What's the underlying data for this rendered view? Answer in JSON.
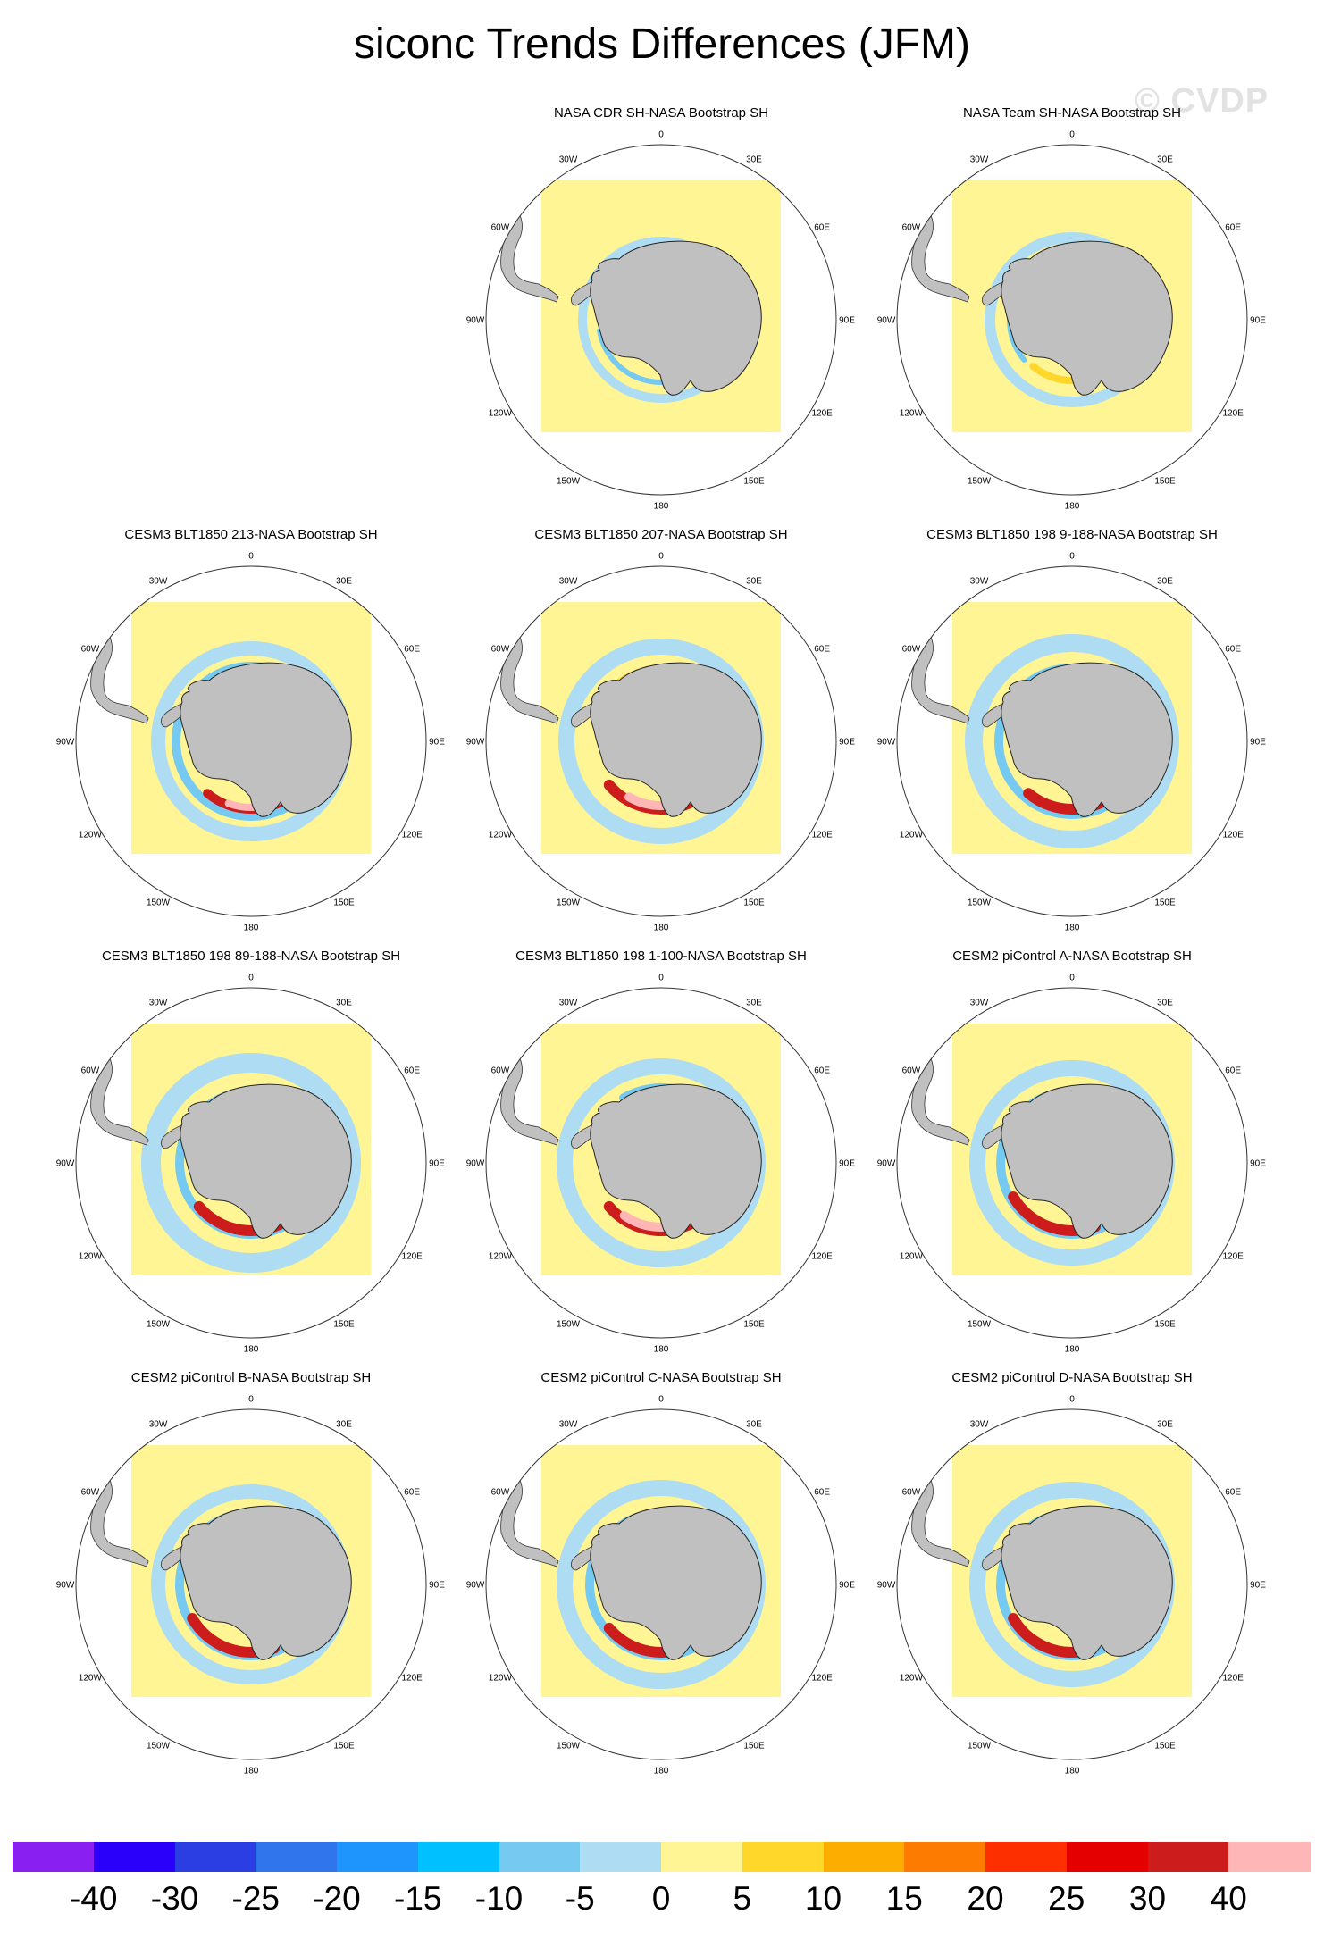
{
  "title": "siconc Trends Differences (JFM)",
  "watermark": "© CVDP",
  "lon_labels": {
    "0": "0",
    "30E": "30E",
    "60E": "60E",
    "90E": "90E",
    "120E": "120E",
    "150E": "150E",
    "180": "180",
    "150W": "150W",
    "120W": "120W",
    "90W": "90W",
    "60W": "60W",
    "30W": "30W"
  },
  "panels": [
    {
      "title": "NASA CDR SH-NASA Bootstrap SH",
      "pattern": "obs_cdr"
    },
    {
      "title": "NASA Team SH-NASA Bootstrap SH",
      "pattern": "obs_team"
    },
    {
      "title": "CESM3 BLT1850 213-NASA Bootstrap SH",
      "pattern": "model_a"
    },
    {
      "title": "CESM3 BLT1850 207-NASA Bootstrap SH",
      "pattern": "model_b"
    },
    {
      "title": "CESM3 BLT1850 198 9-188-NASA Bootstrap SH",
      "pattern": "model_c"
    },
    {
      "title": "CESM3 BLT1850 198 89-188-NASA Bootstrap SH",
      "pattern": "model_d"
    },
    {
      "title": "CESM3 BLT1850 198 1-100-NASA Bootstrap SH",
      "pattern": "model_e"
    },
    {
      "title": "CESM2 piControl A-NASA Bootstrap SH",
      "pattern": "model_f"
    },
    {
      "title": "CESM2 piControl B-NASA Bootstrap SH",
      "pattern": "model_g"
    },
    {
      "title": "CESM2 piControl C-NASA Bootstrap SH",
      "pattern": "model_h"
    },
    {
      "title": "CESM2 piControl D-NASA Bootstrap SH",
      "pattern": "model_i"
    }
  ],
  "colorbar": {
    "colors": [
      "#8a1ff2",
      "#2b00fb",
      "#2b3ee4",
      "#3075ec",
      "#1e95fd",
      "#00c0ff",
      "#76c9f1",
      "#aedcf2",
      "#fff594",
      "#fed72a",
      "#fdac00",
      "#fd7b00",
      "#fd2e00",
      "#e50000",
      "#cc1c1c",
      "#ffb6b6"
    ],
    "labels": [
      "-40",
      "-30",
      "-25",
      "-20",
      "-15",
      "-10",
      "-5",
      "0",
      "5",
      "10",
      "15",
      "20",
      "25",
      "30",
      "40"
    ]
  }
}
